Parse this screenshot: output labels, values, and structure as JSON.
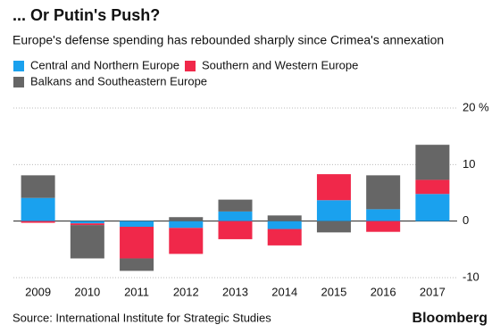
{
  "chart_data": {
    "type": "stacked-bar",
    "title": "... Or Putin's Push?",
    "subtitle": "Europe's defense spending has rebounded sharply since Crimea's annexation",
    "categories": [
      "2009",
      "2010",
      "2011",
      "2012",
      "2013",
      "2014",
      "2015",
      "2016",
      "2017"
    ],
    "series": [
      {
        "name": "Central and Northern Europe",
        "color": "#1aa1ee",
        "values": [
          4.1,
          -0.4,
          -1.0,
          -1.2,
          1.7,
          -1.4,
          3.7,
          2.1,
          4.8
        ]
      },
      {
        "name": "Southern and Western Europe",
        "color": "#f0284a",
        "values": [
          -0.3,
          -0.3,
          -5.6,
          -4.6,
          -3.2,
          -2.9,
          4.6,
          -1.9,
          2.5
        ]
      },
      {
        "name": "Balkans and Southeastern Europe",
        "color": "#666666",
        "values": [
          4.0,
          -5.9,
          -2.2,
          0.7,
          2.1,
          1.0,
          -2.0,
          6.0,
          6.2
        ]
      }
    ],
    "ylim": [
      -10,
      20
    ],
    "yticks": [
      -10,
      0,
      10,
      {
        "value": 20,
        "label": "20 %"
      }
    ],
    "grid": true,
    "source": "Source: International Institute for Strategic Studies",
    "brand": "Bloomberg"
  }
}
